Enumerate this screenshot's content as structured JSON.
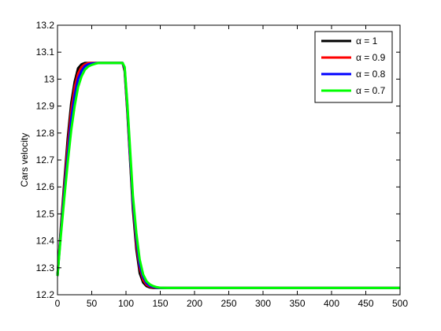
{
  "chart_data": {
    "type": "line",
    "title": "",
    "xlabel": "",
    "ylabel": "Cars velocity",
    "xlim": [
      0,
      500
    ],
    "ylim": [
      12.2,
      13.2
    ],
    "xticks": [
      "0",
      "50",
      "100",
      "150",
      "200",
      "250",
      "300",
      "350",
      "400",
      "450",
      "500"
    ],
    "yticks": [
      "12.2",
      "12.3",
      "12.4",
      "12.5",
      "12.6",
      "12.7",
      "12.8",
      "12.9",
      "13",
      "13.1",
      "13.2"
    ],
    "grid": false,
    "legend_position": "top-right",
    "series": [
      {
        "name": "α = 1",
        "color": "#000000",
        "x": [
          0,
          5,
          10,
          15,
          20,
          25,
          30,
          35,
          40,
          50,
          60,
          70,
          80,
          90,
          95,
          98,
          102,
          106,
          110,
          115,
          120,
          125,
          130,
          135,
          140,
          150,
          200,
          300,
          400,
          500
        ],
        "y": [
          12.27,
          12.45,
          12.62,
          12.78,
          12.91,
          12.99,
          13.04,
          13.055,
          13.06,
          13.06,
          13.06,
          13.06,
          13.06,
          13.06,
          13.06,
          13.03,
          12.88,
          12.7,
          12.52,
          12.37,
          12.28,
          12.245,
          12.232,
          12.227,
          12.225,
          12.225,
          12.225,
          12.225,
          12.225,
          12.225
        ]
      },
      {
        "name": "α = 0.9",
        "color": "#ff0000",
        "x": [
          0,
          5,
          10,
          15,
          20,
          25,
          30,
          35,
          40,
          45,
          50,
          60,
          70,
          80,
          90,
          95,
          98,
          102,
          106,
          110,
          115,
          120,
          125,
          130,
          135,
          140,
          145,
          150,
          200,
          300,
          400,
          500
        ],
        "y": [
          12.27,
          12.44,
          12.6,
          12.75,
          12.88,
          12.97,
          13.02,
          13.045,
          13.055,
          13.06,
          13.06,
          13.06,
          13.06,
          13.06,
          13.06,
          13.06,
          13.035,
          12.89,
          12.71,
          12.54,
          12.39,
          12.3,
          12.255,
          12.237,
          12.23,
          12.227,
          12.226,
          12.225,
          12.225,
          12.225,
          12.225,
          12.225
        ]
      },
      {
        "name": "α = 0.8",
        "color": "#0000ff",
        "x": [
          0,
          5,
          10,
          15,
          20,
          25,
          30,
          35,
          40,
          45,
          50,
          60,
          70,
          80,
          90,
          95,
          98,
          102,
          106,
          110,
          115,
          120,
          125,
          130,
          135,
          140,
          145,
          150,
          200,
          300,
          400,
          500
        ],
        "y": [
          12.27,
          12.43,
          12.58,
          12.72,
          12.85,
          12.94,
          13.0,
          13.03,
          13.048,
          13.055,
          13.058,
          13.06,
          13.06,
          13.06,
          13.06,
          13.06,
          13.04,
          12.9,
          12.72,
          12.55,
          12.41,
          12.31,
          12.265,
          12.243,
          12.233,
          12.229,
          12.226,
          12.225,
          12.225,
          12.225,
          12.225,
          12.225
        ]
      },
      {
        "name": "α = 0.7",
        "color": "#00ff00",
        "x": [
          0,
          5,
          10,
          15,
          20,
          25,
          30,
          35,
          40,
          45,
          50,
          55,
          60,
          70,
          80,
          90,
          95,
          98,
          102,
          106,
          110,
          115,
          120,
          125,
          130,
          135,
          140,
          145,
          150,
          160,
          200,
          300,
          400,
          500
        ],
        "y": [
          12.27,
          12.42,
          12.56,
          12.69,
          12.81,
          12.9,
          12.97,
          13.01,
          13.035,
          13.047,
          13.053,
          13.057,
          13.06,
          13.06,
          13.06,
          13.06,
          13.06,
          13.045,
          12.91,
          12.74,
          12.57,
          12.43,
          12.33,
          12.275,
          12.25,
          12.238,
          12.232,
          12.228,
          12.226,
          12.225,
          12.225,
          12.225,
          12.225,
          12.225
        ]
      }
    ]
  }
}
